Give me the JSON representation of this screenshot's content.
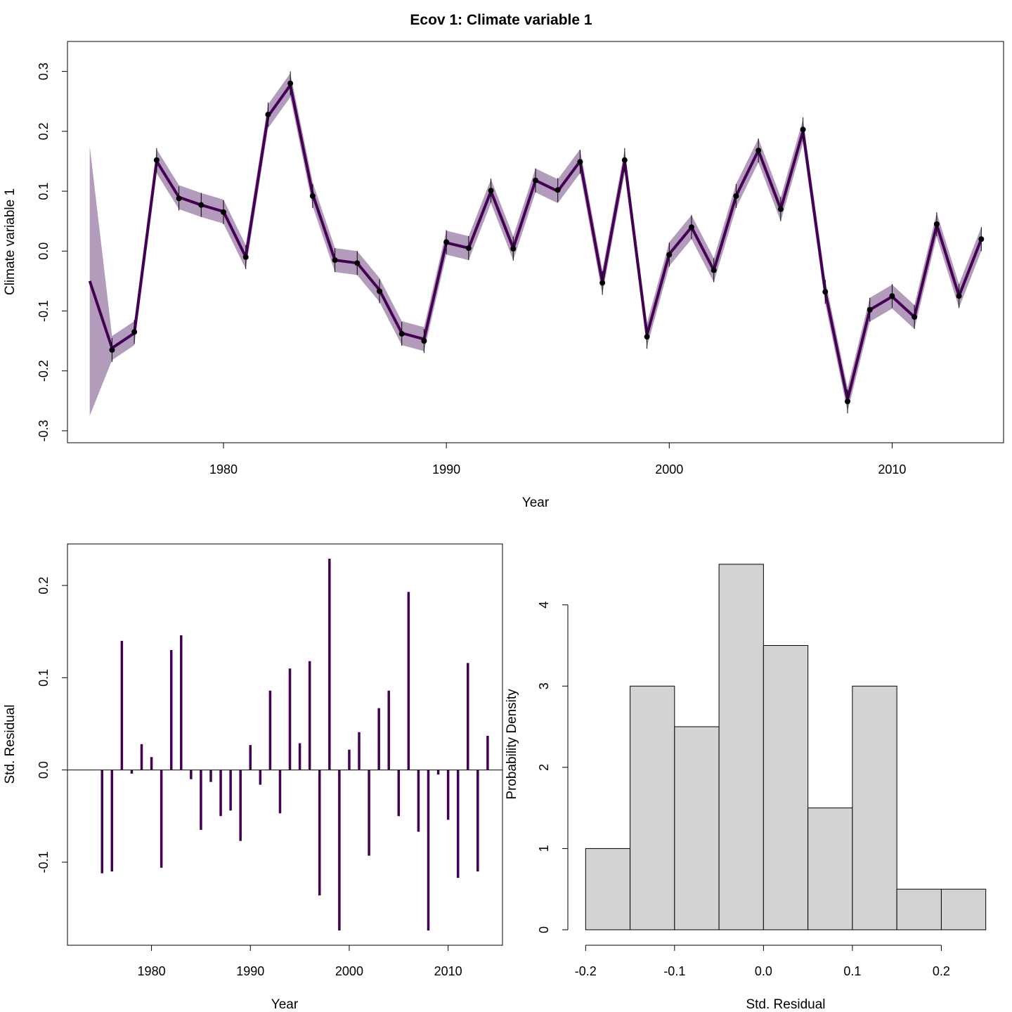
{
  "figure_title": "Ecov 1: Climate variable 1",
  "colors": {
    "main": "#440154",
    "band": "#B39BBB",
    "bar_fill": "#D3D3D3"
  },
  "chart_data": [
    {
      "type": "line",
      "title": "Ecov 1: Climate variable 1",
      "xlabel": "Year",
      "ylabel": "Climate variable 1",
      "xlim": [
        1973,
        2015
      ],
      "ylim": [
        -0.32,
        0.35
      ],
      "x_ticks": [
        1980,
        1990,
        2000,
        2010
      ],
      "y_ticks": [
        -0.3,
        -0.2,
        -0.1,
        0.0,
        0.1,
        0.2,
        0.3
      ],
      "x_tick_labels": [
        "1980",
        "1990",
        "2000",
        "2010"
      ],
      "y_tick_labels": [
        "-0.3",
        "-0.2",
        "-0.1",
        "0.0",
        "0.1",
        "0.2",
        "0.3"
      ],
      "years": [
        1974,
        1975,
        1976,
        1977,
        1978,
        1979,
        1980,
        1981,
        1982,
        1983,
        1984,
        1985,
        1986,
        1987,
        1988,
        1989,
        1990,
        1991,
        1992,
        1993,
        1994,
        1995,
        1996,
        1997,
        1998,
        1999,
        2000,
        2001,
        2002,
        2003,
        2004,
        2005,
        2006,
        2007,
        2008,
        2009,
        2010,
        2011,
        2012,
        2013,
        2014
      ],
      "estimate": [
        -0.05,
        -0.162,
        -0.137,
        0.15,
        0.09,
        0.077,
        0.066,
        -0.01,
        0.225,
        0.277,
        0.095,
        -0.015,
        -0.02,
        -0.065,
        -0.137,
        -0.147,
        0.014,
        0.005,
        0.1,
        0.005,
        0.118,
        0.1,
        0.15,
        -0.052,
        0.15,
        -0.14,
        -0.005,
        0.04,
        -0.032,
        0.092,
        0.168,
        0.07,
        0.2,
        -0.068,
        -0.248,
        -0.098,
        -0.076,
        -0.11,
        0.044,
        -0.075,
        0.02
      ],
      "band_halfwidth": [
        0.225,
        0.02,
        0.02,
        0.02,
        0.02,
        0.02,
        0.02,
        0.02,
        0.02,
        0.02,
        0.02,
        0.02,
        0.02,
        0.02,
        0.02,
        0.02,
        0.02,
        0.02,
        0.02,
        0.02,
        0.02,
        0.02,
        0.02,
        0.02,
        0.02,
        0.02,
        0.02,
        0.02,
        0.02,
        0.02,
        0.02,
        0.02,
        0.02,
        0.02,
        0.02,
        0.02,
        0.02,
        0.02,
        0.02,
        0.02,
        0.02
      ],
      "obs_years": [
        1975,
        1976,
        1977,
        1978,
        1979,
        1980,
        1981,
        1982,
        1983,
        1984,
        1985,
        1986,
        1987,
        1988,
        1989,
        1990,
        1991,
        1992,
        1993,
        1994,
        1995,
        1996,
        1997,
        1998,
        1999,
        2000,
        2001,
        2002,
        2003,
        2004,
        2005,
        2006,
        2007,
        2008,
        2009,
        2010,
        2011,
        2012,
        2013,
        2014
      ],
      "obs": [
        -0.165,
        -0.135,
        0.152,
        0.088,
        0.077,
        0.065,
        -0.01,
        0.228,
        0.28,
        0.092,
        -0.015,
        -0.02,
        -0.067,
        -0.138,
        -0.15,
        0.015,
        0.005,
        0.101,
        0.004,
        0.118,
        0.102,
        0.149,
        -0.053,
        0.152,
        -0.143,
        -0.006,
        0.04,
        -0.032,
        0.092,
        0.168,
        0.07,
        0.203,
        -0.068,
        -0.251,
        -0.098,
        -0.075,
        -0.11,
        0.045,
        -0.075,
        0.02
      ],
      "obs_err": 0.02
    },
    {
      "type": "bar",
      "subtype": "residual-spikes",
      "xlabel": "Year",
      "ylabel": "Std. Residual",
      "xlim": [
        1971.5,
        2015.5
      ],
      "ylim": [
        -0.19,
        0.245
      ],
      "x_ticks": [
        1980,
        1990,
        2000,
        2010
      ],
      "y_ticks": [
        -0.1,
        0.0,
        0.1,
        0.2
      ],
      "x_tick_labels": [
        "1980",
        "1990",
        "2000",
        "2010"
      ],
      "y_tick_labels": [
        "-0.1",
        "0.0",
        "0.1",
        "0.2"
      ],
      "years": [
        1975,
        1976,
        1977,
        1978,
        1979,
        1980,
        1981,
        1982,
        1983,
        1984,
        1985,
        1986,
        1987,
        1988,
        1989,
        1990,
        1991,
        1992,
        1993,
        1994,
        1995,
        1996,
        1997,
        1998,
        1999,
        2000,
        2001,
        2002,
        2003,
        2004,
        2005,
        2006,
        2007,
        2008,
        2009,
        2010,
        2011,
        2012,
        2013,
        2014
      ],
      "values": [
        -0.112,
        -0.11,
        0.14,
        -0.004,
        0.028,
        0.014,
        -0.106,
        0.13,
        0.146,
        -0.01,
        -0.065,
        -0.013,
        -0.05,
        -0.044,
        -0.077,
        0.027,
        -0.016,
        0.086,
        -0.047,
        0.11,
        0.029,
        0.118,
        -0.136,
        0.229,
        -0.174,
        0.022,
        0.041,
        -0.093,
        0.067,
        0.086,
        -0.05,
        0.193,
        -0.067,
        -0.174,
        -0.005,
        -0.054,
        -0.117,
        0.116,
        -0.11,
        0.037
      ]
    },
    {
      "type": "bar",
      "subtype": "histogram",
      "xlabel": "Std. Residual",
      "ylabel": "Probability Density",
      "xlim": [
        -0.22,
        0.27
      ],
      "ylim": [
        0,
        4.75
      ],
      "x_ticks": [
        -0.2,
        -0.1,
        0.0,
        0.1,
        0.2
      ],
      "y_ticks": [
        0,
        1,
        2,
        3,
        4
      ],
      "x_tick_labels": [
        "-0.2",
        "-0.1",
        "0.0",
        "0.1",
        "0.2"
      ],
      "y_tick_labels": [
        "0",
        "1",
        "2",
        "3",
        "4"
      ],
      "bin_edges": [
        -0.2,
        -0.15,
        -0.1,
        -0.05,
        0.0,
        0.05,
        0.1,
        0.15,
        0.2,
        0.25
      ],
      "density": [
        1.0,
        3.0,
        2.5,
        4.5,
        3.5,
        1.5,
        3.0,
        0.5,
        0.5
      ]
    }
  ]
}
